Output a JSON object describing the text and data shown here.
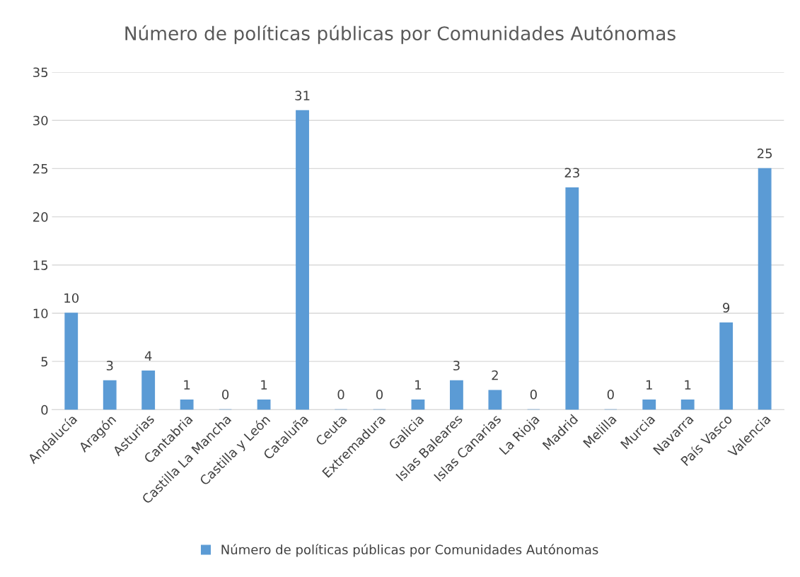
{
  "chart_data": {
    "type": "bar",
    "title": "Número de políticas públicas por Comunidades Autónomas",
    "categories": [
      "Andalucía",
      "Aragón",
      "Asturias",
      "Cantabria",
      "Castilla La Mancha",
      "Castilla y León",
      "Cataluña",
      "Ceuta",
      "Extremadura",
      "Galicia",
      "Islas Baleares",
      "Islas Canarias",
      "La Rioja",
      "Madrid",
      "Melilla",
      "Murcia",
      "Navarra",
      "País Vasco",
      "Valencia"
    ],
    "series": [
      {
        "name": "Número de políticas públicas por Comunidades Autónomas",
        "color": "#5b9bd5",
        "values": [
          10,
          3,
          4,
          1,
          0,
          1,
          31,
          0,
          0,
          1,
          3,
          2,
          0,
          23,
          0,
          1,
          1,
          9,
          25
        ]
      }
    ],
    "ylim": [
      0,
      35
    ],
    "yticks": [
      0,
      5,
      10,
      15,
      20,
      25,
      30,
      35
    ],
    "grid": "y",
    "legend": "bottom",
    "data_labels": true
  }
}
